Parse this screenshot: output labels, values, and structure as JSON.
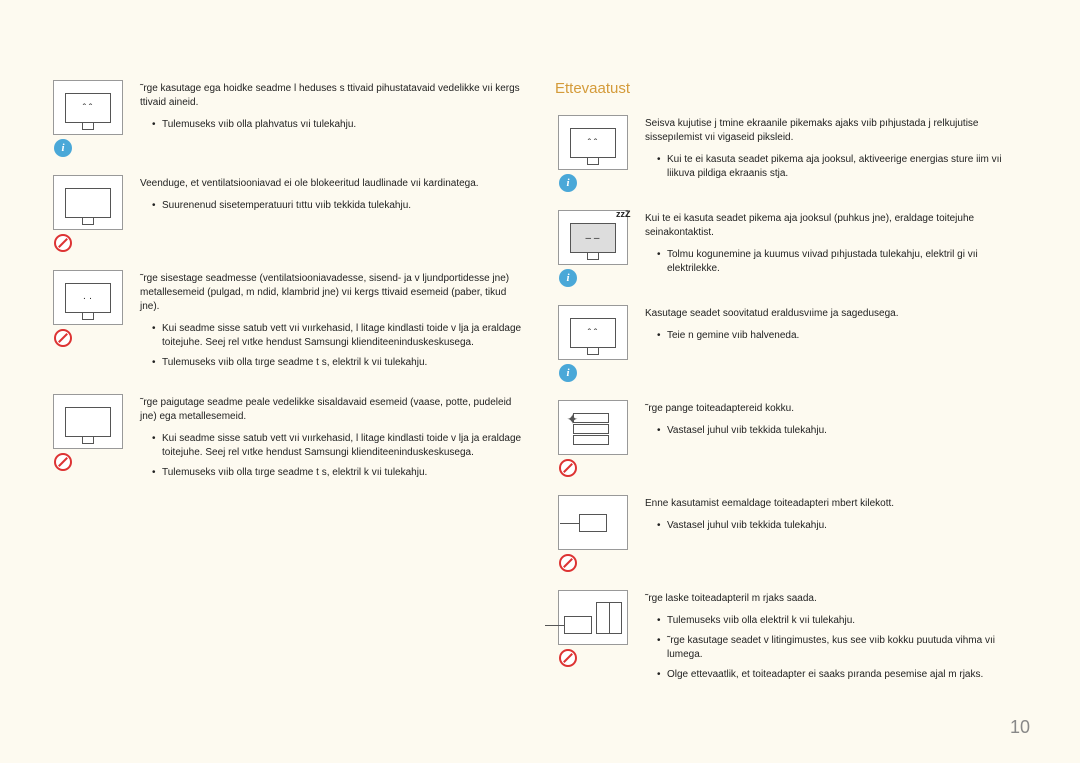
{
  "page_number": "10",
  "heading": "Ettevaatust",
  "left": [
    {
      "badge": "info",
      "lead": "˜rge kasutage ega hoidke seadme l heduses s ttivaid pihustatavaid vedelikke vıi kergs ttivaid aineid.",
      "bullets": [
        "Tulemuseks vıib olla plahvatus vıi tulekahju."
      ]
    },
    {
      "badge": "prohibit",
      "lead": "Veenduge, et ventilatsiooniavad ei ole blokeeritud laudlinade vıi kardinatega.",
      "bullets": [
        "Suurenenud sisetemperatuuri tıttu vıib tekkida tulekahju."
      ]
    },
    {
      "badge": "prohibit",
      "lead": "˜rge sisestage seadmesse (ventilatsiooniavadesse, sisend- ja v ljundportidesse jne) metallesemeid (pulgad, m ndid, klambrid jne) vıi kergs ttivaid esemeid (paber, tikud jne).",
      "bullets": [
        "Kui seadme sisse satub vett vıi vıırkehasid, l litage kindlasti toide v lja ja eraldage toitejuhe. Seej rel vıtke  hendust Samsungi klienditeeninduskeskusega.",
        "Tulemuseks vıib olla tırge seadme t s, elektril  k vıi tulekahju."
      ]
    },
    {
      "badge": "prohibit",
      "lead": "˜rge paigutage seadme peale vedelikke sisaldavaid esemeid (vaase, potte, pudeleid jne) ega metallesemeid.",
      "bullets": [
        "Kui seadme sisse satub vett vıi vıırkehasid, l litage kindlasti toide v lja ja eraldage toitejuhe. Seej rel vıtke  hendust Samsungi klienditeeninduskeskusega.",
        "Tulemuseks vıib olla tırge seadme t s, elektril  k vıi tulekahju."
      ]
    }
  ],
  "right": [
    {
      "badge": "info",
      "lead": "Seisva kujutise j tmine ekraanile pikemaks ajaks vıib pıhjustada j relkujutise sissepılemist vıi vigaseid piksleid.",
      "bullets": [
        "Kui te ei kasuta seadet pikema aja jooksul, aktiveerige energias  sture iim vıi liikuva pildiga ekraanis  stja."
      ]
    },
    {
      "badge": "info",
      "lead": "Kui te ei kasuta seadet pikema aja jooksul (puhkus jne), eraldage toitejuhe seinakontaktist.",
      "bullets": [
        "Tolmu kogunemine ja kuumus vıivad pıhjustada tulekahju, elektril  gi vıi elektrilekke."
      ]
    },
    {
      "badge": "info",
      "lead": "Kasutage seadet soovitatud eraldusvıime ja sagedusega.",
      "bullets": [
        "Teie n gemine vıib halveneda."
      ]
    },
    {
      "badge": "prohibit",
      "lead": "˜rge pange toiteadaptereid kokku.",
      "bullets": [
        "Vastasel juhul vıib tekkida tulekahju."
      ]
    },
    {
      "badge": "prohibit",
      "lead": "Enne kasutamist eemaldage toiteadapteri  mbert kilekott.",
      "bullets": [
        "Vastasel juhul vıib tekkida tulekahju."
      ]
    },
    {
      "badge": "prohibit",
      "lead": "˜rge laske toiteadapteril m rjaks saada.",
      "bullets": [
        "Tulemuseks vıib olla elektril  k vıi tulekahju.",
        "˜rge kasutage seadet v litingimustes, kus see vıib kokku puutuda vihma vıi lumega.",
        "Olge ettevaatlik, et toiteadapter ei saaks pıranda pesemise ajal m rjaks."
      ]
    }
  ]
}
